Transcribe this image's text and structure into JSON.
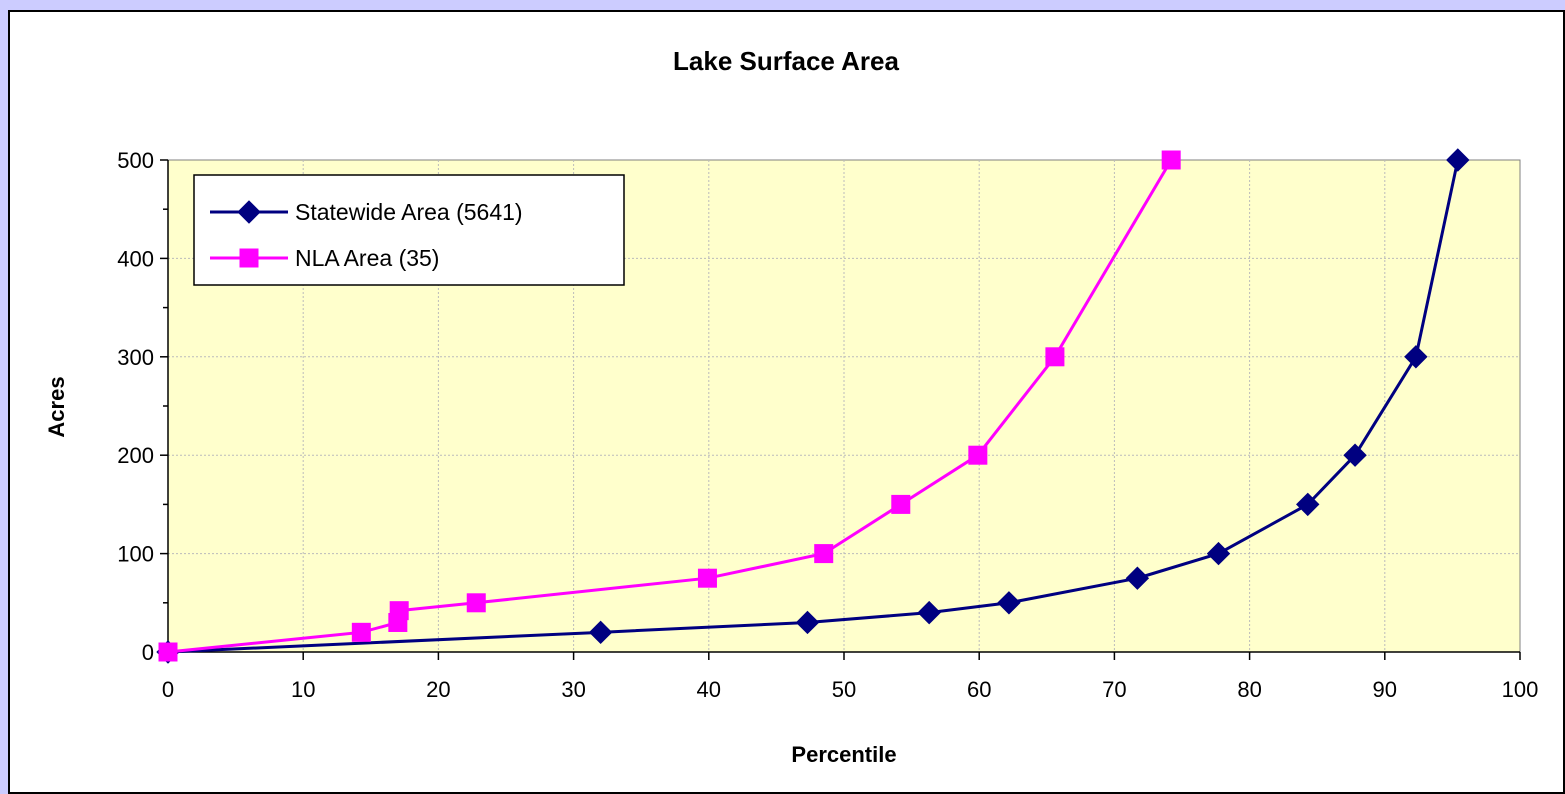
{
  "chart_data": {
    "type": "line",
    "title": "Lake Surface Area",
    "xlabel": "Percentile",
    "ylabel": "Acres",
    "xlim": [
      0,
      100
    ],
    "ylim": [
      0,
      500
    ],
    "x_ticks": [
      "0",
      "10",
      "20",
      "30",
      "40",
      "50",
      "60",
      "70",
      "80",
      "90",
      "100"
    ],
    "y_ticks": [
      "0",
      "100",
      "200",
      "300",
      "400",
      "500"
    ],
    "grid": true,
    "legend_position": "top-left",
    "plot_background": "#ffffcc",
    "series": [
      {
        "name": "Statewide Area (5641)",
        "color": "#000080",
        "marker": "diamond",
        "x": [
          0,
          32.0,
          47.3,
          56.3,
          62.2,
          71.7,
          77.7,
          84.3,
          87.8,
          92.3,
          95.4
        ],
        "y": [
          0,
          20,
          30,
          40,
          50,
          75,
          100,
          150,
          200,
          300,
          500
        ]
      },
      {
        "name": "NLA Area (35)",
        "color": "#ff00ff",
        "marker": "square",
        "x": [
          0,
          14.3,
          17.0,
          17.1,
          22.8,
          39.9,
          48.5,
          54.2,
          59.9,
          65.6,
          74.2
        ],
        "y": [
          0,
          20,
          30,
          42,
          50,
          75,
          100,
          150,
          200,
          300,
          500
        ]
      }
    ]
  }
}
